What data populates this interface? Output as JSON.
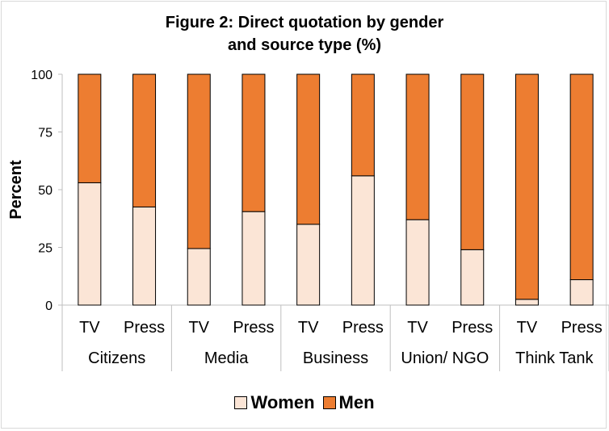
{
  "chart_data": {
    "type": "bar",
    "stacked": true,
    "title": "Figure 2: Direct quotation by gender and source type (%)",
    "title_lines": [
      "Figure 2: Direct quotation by gender",
      "and source type (%)"
    ],
    "ylabel": "Percent",
    "ylim": [
      0,
      100
    ],
    "yticks": [
      0,
      25,
      50,
      75,
      100
    ],
    "groups": [
      "Citizens",
      "Media",
      "Business",
      "Union/ NGO",
      "Think Tank"
    ],
    "categories": [
      "TV",
      "Press",
      "TV",
      "Press",
      "TV",
      "Press",
      "TV",
      "Press",
      "TV",
      "Press"
    ],
    "series": [
      {
        "name": "Women",
        "color": "#fbe5d6",
        "values": [
          53,
          42.5,
          24.5,
          40.5,
          35,
          56,
          37,
          24,
          2.5,
          11
        ]
      },
      {
        "name": "Men",
        "color": "#ed7d31",
        "values": [
          47,
          57.5,
          75.5,
          59.5,
          65,
          44,
          63,
          76,
          97.5,
          89
        ]
      }
    ],
    "legend_position": "bottom",
    "grid": false
  }
}
